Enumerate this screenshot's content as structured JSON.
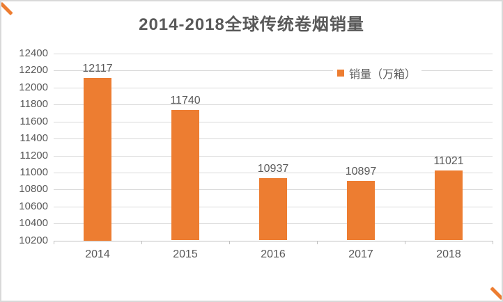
{
  "chart_data": {
    "type": "bar",
    "title": "2014-2018全球传统卷烟销量",
    "categories": [
      "2014",
      "2015",
      "2016",
      "2017",
      "2018"
    ],
    "series": [
      {
        "name": "销量（万箱）",
        "values": [
          12117,
          11740,
          10937,
          10897,
          11021
        ]
      }
    ],
    "data_labels": true,
    "ylim": [
      10200,
      12400
    ],
    "y_ticks": [
      12400,
      12200,
      12000,
      11800,
      11600,
      11400,
      11200,
      11000,
      10800,
      10600,
      10400,
      10200
    ],
    "xlabel": "",
    "ylabel": "",
    "grid": true,
    "legend_position": "inside-top-right"
  },
  "colors": {
    "bar": "#ED7D31",
    "legend_swatch": "#ED7D31",
    "corner_mark": "#ED7D31",
    "gridline": "#D9D9D9",
    "axis_line": "#BFBFBF",
    "text": "#595959",
    "background": "#FFFFFF",
    "border": "#D9D9D9"
  }
}
